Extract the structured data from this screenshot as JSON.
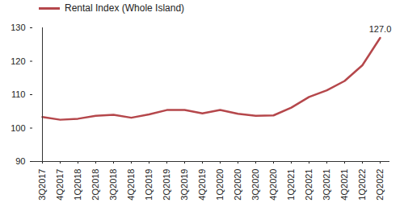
{
  "chart_data": {
    "type": "line",
    "categories": [
      "3Q2017",
      "4Q2017",
      "1Q2018",
      "2Q2018",
      "3Q2018",
      "4Q2018",
      "1Q2019",
      "2Q2019",
      "3Q2019",
      "4Q2019",
      "1Q2020",
      "2Q2020",
      "3Q2020",
      "4Q2020",
      "1Q2021",
      "2Q2021",
      "3Q2021",
      "4Q2021",
      "1Q2022",
      "2Q2022"
    ],
    "series": [
      {
        "name": "Rental Index (Whole Island)",
        "color": "#b5474b",
        "values": [
          103.3,
          102.5,
          102.8,
          103.7,
          104.0,
          103.1,
          104.1,
          105.4,
          105.4,
          104.4,
          105.4,
          104.3,
          103.7,
          103.8,
          106.1,
          109.3,
          111.3,
          114.1,
          118.8,
          127.0
        ]
      }
    ],
    "ylim": [
      90,
      130
    ],
    "yticks": [
      90,
      100,
      110,
      120,
      130
    ],
    "grid": false,
    "legend": "top",
    "annotations": [
      {
        "category": "2Q2022",
        "value": 127.0,
        "label": "127.0"
      }
    ]
  }
}
